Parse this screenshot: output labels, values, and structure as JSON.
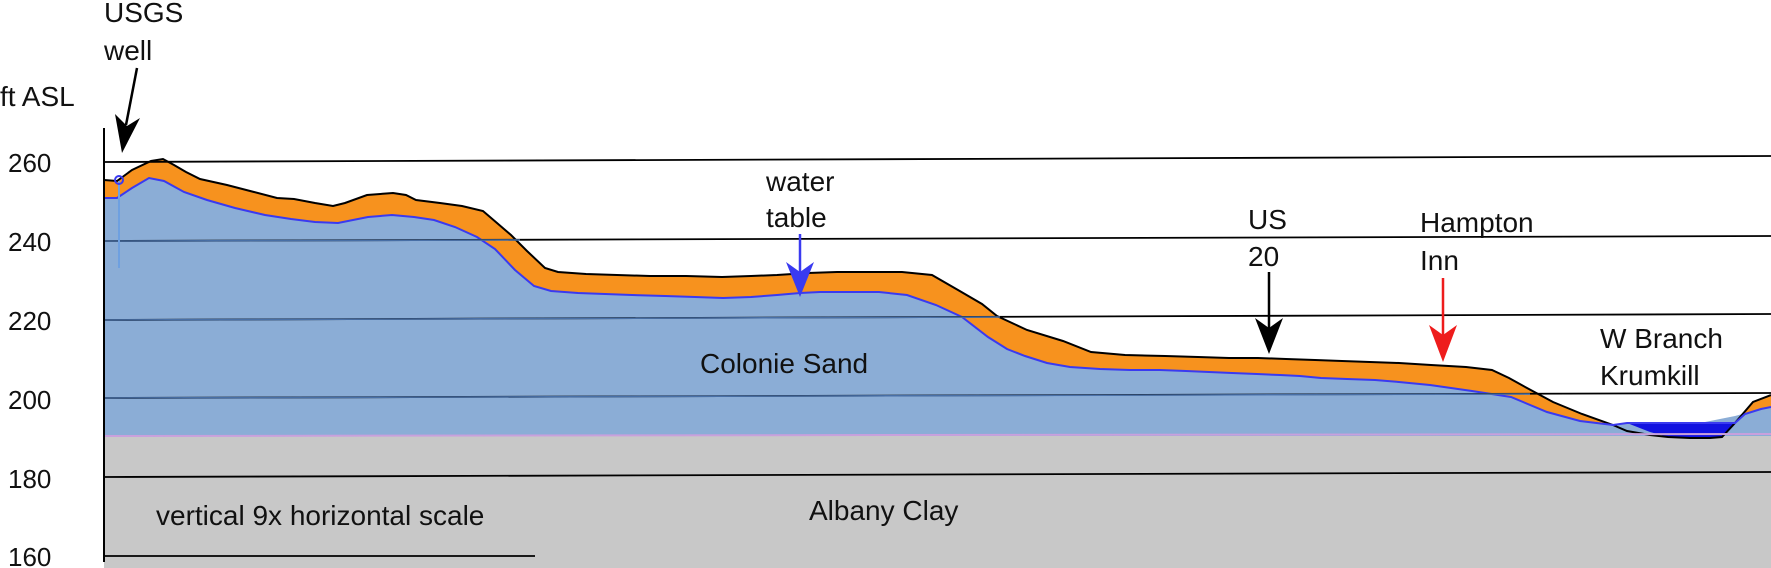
{
  "axis": {
    "unit_label": "ft ASL",
    "ticks": [
      "260",
      "240",
      "220",
      "200",
      "180",
      "160"
    ],
    "tick_values": [
      260,
      240,
      220,
      200,
      180,
      160
    ]
  },
  "markers": {
    "usgs_well": {
      "line1": "USGS",
      "line2": "well"
    },
    "water_table": {
      "line1": "water",
      "line2": "table"
    },
    "us20": {
      "line1": "US",
      "line2": "20"
    },
    "hampton": {
      "line1": "Hampton",
      "line2": "Inn"
    },
    "w_branch": {
      "line1": "W Branch",
      "line2": "Krumkill"
    }
  },
  "layers": {
    "colonie_sand": "Colonie Sand",
    "albany_clay": "Albany Clay"
  },
  "scale_note": "vertical 9x horizontal scale",
  "colors": {
    "topsoil": "#f7921e",
    "sand": "#8badd6",
    "clay": "#c8c8c8",
    "water": "#1212e0",
    "water_table_line": "#3a3af0",
    "hampton_arrow": "#ee1c1c",
    "gridline": "#000000"
  }
}
